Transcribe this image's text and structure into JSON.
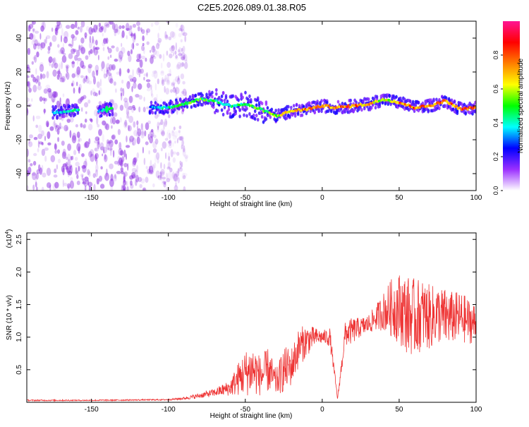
{
  "title": "C2E5.2026.089.01.38.R05",
  "colors": {
    "snr_line": "#ee3333",
    "axis": "#000000",
    "spectrogram_noise": "#8a2be2"
  },
  "chart_data": [
    {
      "type": "heatmap",
      "xlabel": "Height of straight line (km)",
      "ylabel": "Frequency (Hz)",
      "xlim": [
        -192,
        100
      ],
      "ylim": [
        -50,
        50
      ],
      "x_ticks": [
        -150,
        -100,
        -50,
        0,
        50,
        100
      ],
      "x_tick_labels": [
        "-150",
        "-100",
        "-50",
        "0",
        "50",
        "100"
      ],
      "y_ticks": [
        -40,
        -20,
        0,
        20,
        40
      ],
      "y_tick_labels": [
        "-40",
        "-20",
        "0",
        "20",
        "40"
      ],
      "colorbar": {
        "label": "Normalized spectral amplitude",
        "range": [
          0,
          1
        ],
        "ticks": [
          0.0,
          0.2,
          0.4,
          0.6,
          0.8
        ],
        "tick_labels": [
          "0.0",
          "0.2",
          "0.4",
          "0.6",
          "0.8"
        ],
        "colors": [
          "#ffffff",
          "#9b30ff",
          "#0000ff",
          "#00ffff",
          "#00ff00",
          "#ffff00",
          "#ff7f00",
          "#ff0000",
          "#ff1493"
        ]
      },
      "ridge": {
        "x": [
          -175,
          -165,
          -155,
          -145,
          -140,
          -110,
          -100,
          -90,
          -80,
          -70,
          -60,
          -50,
          -40,
          -30,
          -20,
          -10,
          0,
          10,
          20,
          30,
          40,
          50,
          60,
          70,
          80,
          90,
          100
        ],
        "freq_hz": [
          -4,
          -3,
          -2,
          -3,
          -2,
          -1,
          -1,
          1,
          4,
          3,
          0,
          1,
          -2,
          -6,
          -3,
          -2,
          0,
          -1,
          0,
          1,
          4,
          2,
          -1,
          0,
          3,
          -2,
          -1
        ],
        "amplitude": [
          0.35,
          0.4,
          0.45,
          0.3,
          0.5,
          0.35,
          0.45,
          0.5,
          0.55,
          0.5,
          0.45,
          0.5,
          0.55,
          0.6,
          0.7,
          0.8,
          0.75,
          0.8,
          0.85,
          0.75,
          0.6,
          0.85,
          0.8,
          0.85,
          0.8,
          0.85,
          0.9
        ]
      }
    },
    {
      "type": "line",
      "xlabel": "Height of straight line (km)",
      "ylabel": "SNR (10 * v/v)",
      "y_multiplier": "(x10",
      "y_multiplier_exp": "4",
      "y_multiplier_close": ")",
      "xlim": [
        -192,
        100
      ],
      "ylim": [
        0,
        2.6
      ],
      "x_ticks": [
        -150,
        -100,
        -50,
        0,
        50,
        100
      ],
      "x_tick_labels": [
        "-150",
        "-100",
        "-50",
        "0",
        "50",
        "100"
      ],
      "y_ticks": [
        0.5,
        1.0,
        1.5,
        2.0,
        2.5
      ],
      "y_tick_labels": [
        "0.5",
        "1.0",
        "1.5",
        "2.0",
        "2.5"
      ],
      "series": [
        {
          "x": [
            -192,
            -150,
            -100,
            -90,
            -80,
            -70,
            -60,
            -55,
            -50,
            -45,
            -40,
            -35,
            -30,
            -25,
            -20,
            -15,
            -10,
            -5,
            0,
            5,
            10,
            15,
            20,
            25,
            30,
            35,
            40,
            45,
            50,
            55,
            60,
            65,
            70,
            75,
            80,
            85,
            90,
            95,
            100
          ],
          "values": [
            0.03,
            0.03,
            0.04,
            0.06,
            0.1,
            0.15,
            0.22,
            0.35,
            0.45,
            0.5,
            0.4,
            0.5,
            0.3,
            0.5,
            0.55,
            0.85,
            0.95,
            1.0,
            1.0,
            1.0,
            0.05,
            1.05,
            1.1,
            1.15,
            1.2,
            1.3,
            1.4,
            1.45,
            1.45,
            1.35,
            1.3,
            1.35,
            1.3,
            1.35,
            1.3,
            1.3,
            1.3,
            1.25,
            1.2
          ],
          "noise": [
            0.01,
            0.01,
            0.01,
            0.02,
            0.04,
            0.06,
            0.12,
            0.25,
            0.35,
            0.4,
            0.3,
            0.35,
            0.2,
            0.35,
            0.3,
            0.3,
            0.25,
            0.15,
            0.1,
            0.15,
            0.02,
            0.2,
            0.2,
            0.15,
            0.15,
            0.2,
            0.3,
            0.45,
            0.55,
            0.6,
            0.6,
            0.55,
            0.5,
            0.45,
            0.45,
            0.4,
            0.4,
            0.35,
            0.3
          ]
        }
      ]
    }
  ]
}
